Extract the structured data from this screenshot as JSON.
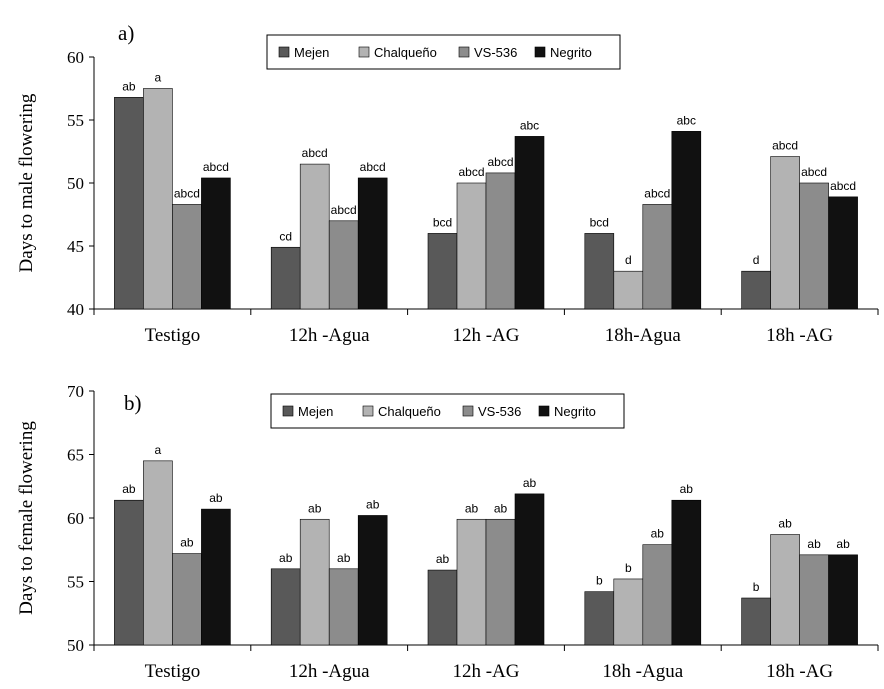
{
  "chart_data": [
    {
      "type": "bar",
      "panel_label": "a)",
      "ylabel": "Days to male flowering",
      "ylim": [
        40,
        60
      ],
      "yticks": [
        "40",
        "45",
        "50",
        "55",
        "60"
      ],
      "categories": [
        "Testigo",
        "12h -Agua",
        "12h -AG",
        "18h-Agua",
        "18h -AG"
      ],
      "series": [
        {
          "name": "Mejen",
          "color": "#595959",
          "values": [
            56.8,
            44.9,
            46.0,
            46.0,
            43.0
          ],
          "labels": [
            "ab",
            "cd",
            "bcd",
            "bcd",
            "d"
          ]
        },
        {
          "name": "Chalqueño",
          "color": "#b3b3b3",
          "values": [
            57.5,
            51.5,
            50.0,
            43.0,
            52.1
          ],
          "labels": [
            "a",
            "abcd",
            "abcd",
            "d",
            "abcd"
          ]
        },
        {
          "name": "VS-536",
          "color": "#8c8c8c",
          "values": [
            48.3,
            47.0,
            50.8,
            48.3,
            50.0
          ],
          "labels": [
            "abcd",
            "abcd",
            "abcd",
            "abcd",
            "abcd"
          ]
        },
        {
          "name": "Negrito",
          "color": "#111111",
          "values": [
            50.4,
            50.4,
            53.7,
            54.1,
            48.9
          ],
          "labels": [
            "abcd",
            "abcd",
            "abc",
            "abc",
            "abcd"
          ]
        }
      ],
      "legend": {
        "position": "top-center",
        "items": [
          "Mejen",
          "Chalqueño",
          "VS-536",
          "Negrito"
        ]
      },
      "grid": false
    },
    {
      "type": "bar",
      "panel_label": "b)",
      "ylabel": "Days to female flowering",
      "ylim": [
        50,
        70
      ],
      "yticks": [
        "50",
        "55",
        "60",
        "65",
        "70"
      ],
      "categories": [
        "Testigo",
        "12h -Agua",
        "12h -AG",
        "18h -Agua",
        "18h -AG"
      ],
      "series": [
        {
          "name": "Mejen",
          "color": "#595959",
          "values": [
            61.4,
            56.0,
            55.9,
            54.2,
            53.7
          ],
          "labels": [
            "ab",
            "ab",
            "ab",
            "b",
            "b"
          ]
        },
        {
          "name": "Chalqueño",
          "color": "#b3b3b3",
          "values": [
            64.5,
            59.9,
            59.9,
            55.2,
            58.7
          ],
          "labels": [
            "a",
            "ab",
            "ab",
            "b",
            "ab"
          ]
        },
        {
          "name": "VS-536",
          "color": "#8c8c8c",
          "values": [
            57.2,
            56.0,
            59.9,
            57.9,
            57.1
          ],
          "labels": [
            "ab",
            "ab",
            "ab",
            "ab",
            "ab"
          ]
        },
        {
          "name": "Negrito",
          "color": "#111111",
          "values": [
            60.7,
            60.2,
            61.9,
            61.4,
            57.1
          ],
          "labels": [
            "ab",
            "ab",
            "ab",
            "ab",
            "ab"
          ]
        }
      ],
      "legend": {
        "position": "top-center",
        "items": [
          "Mejen",
          "Chalqueño",
          "VS-536",
          "Negrito"
        ]
      },
      "grid": false
    }
  ]
}
